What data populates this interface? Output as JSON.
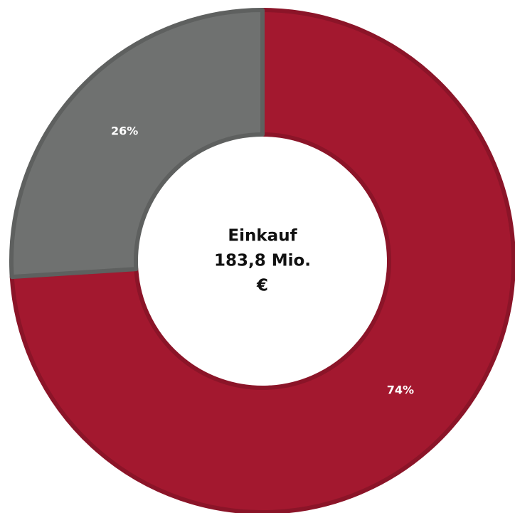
{
  "chart_data": {
    "type": "donut",
    "values": [
      74,
      26
    ],
    "value_labels": [
      "74%",
      "26%"
    ],
    "colors": [
      "#a3182f",
      "#6f7170"
    ],
    "center_label": [
      "Einkauf",
      "183,8 Mio.",
      "€"
    ]
  }
}
